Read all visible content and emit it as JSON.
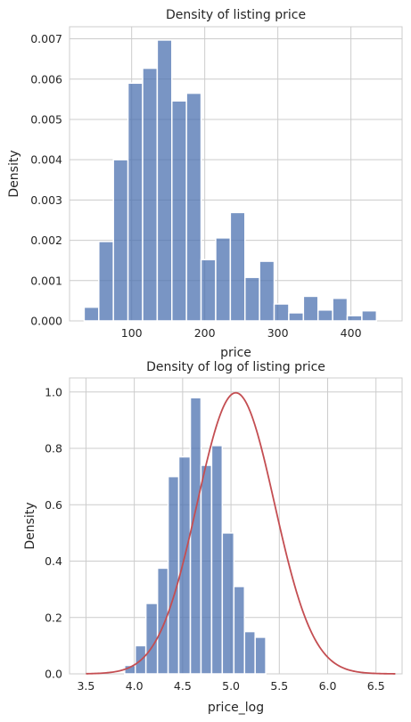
{
  "chart_data": [
    {
      "type": "bar",
      "title": "Density of listing price",
      "xlabel": "price",
      "ylabel": "Density",
      "xlim": [
        15,
        470
      ],
      "ylim": [
        0,
        0.0073
      ],
      "xticks": [
        100,
        200,
        300,
        400
      ],
      "xtick_labels": [
        "100",
        "200",
        "300",
        "400"
      ],
      "yticks": [
        0.0,
        0.001,
        0.002,
        0.003,
        0.004,
        0.005,
        0.006,
        0.007
      ],
      "ytick_labels": [
        "0.000",
        "0.001",
        "0.002",
        "0.003",
        "0.004",
        "0.005",
        "0.006",
        "0.007"
      ],
      "grid": true,
      "bin_edges": [
        35,
        55,
        75,
        95,
        115,
        135,
        155,
        175,
        195,
        215,
        235,
        255,
        275,
        295,
        315,
        335,
        355,
        375,
        395,
        415,
        435,
        455
      ],
      "values": [
        0.00034,
        0.00197,
        0.004,
        0.0059,
        0.00627,
        0.00697,
        0.00546,
        0.00565,
        0.00152,
        0.00206,
        0.00269,
        0.00108,
        0.00148,
        0.00042,
        0.0002,
        0.00061,
        0.00027,
        0.00056,
        0.00013,
        0.00025,
        0.0
      ],
      "color": "#4c72b0"
    },
    {
      "type": "bar",
      "title": "Density of log of listing price",
      "xlabel": "price_log",
      "ylabel": "Density",
      "xlim": [
        3.33,
        6.77
      ],
      "ylim": [
        0,
        1.05
      ],
      "xticks": [
        3.5,
        4.0,
        4.5,
        5.0,
        5.5,
        6.0,
        6.5
      ],
      "xtick_labels": [
        "3.5",
        "4.0",
        "4.5",
        "5.0",
        "5.5",
        "6.0",
        "6.5"
      ],
      "yticks": [
        0.0,
        0.2,
        0.4,
        0.6,
        0.8,
        1.0
      ],
      "ytick_labels": [
        "0.0",
        "0.2",
        "0.4",
        "0.6",
        "0.8",
        "1.0"
      ],
      "grid": true,
      "bin_edges": [
        3.9,
        4.01,
        4.12,
        4.24,
        4.35,
        4.46,
        4.58,
        4.69,
        4.8,
        4.91,
        5.03,
        5.14,
        5.25,
        5.36,
        5.48,
        5.59,
        5.7,
        5.82,
        5.93,
        6.04,
        6.1
      ],
      "values": [
        0.03,
        0.1,
        0.25,
        0.375,
        0.7,
        0.77,
        0.98,
        0.74,
        0.81,
        0.5,
        0.31,
        0.15,
        0.13,
        0.0,
        0.0,
        0.0,
        0.0,
        0.0,
        0.0,
        0.0
      ],
      "bars_used": 13,
      "overlay": {
        "type": "normal-pdf",
        "mean": 5.05,
        "std": 0.4,
        "x_range": [
          3.5,
          6.7
        ],
        "color": "#c44e52"
      },
      "color": "#4c72b0"
    }
  ]
}
